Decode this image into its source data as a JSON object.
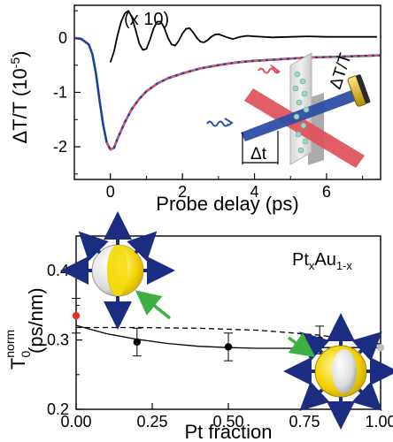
{
  "chart_data": [
    {
      "type": "line",
      "xlabel": "Probe delay (ps)",
      "ylabel": "ΔT/T (10",
      "ylabel_exp": "-5",
      "ylabel_close": ")",
      "xlim": [
        -1,
        7.5
      ],
      "ylim": [
        -2.6,
        0.6
      ],
      "x_ticks": [
        0,
        2,
        4,
        6
      ],
      "y_ticks": [
        0,
        -1,
        -2
      ],
      "x_tick_labels": [
        "0",
        "2",
        "4",
        "6"
      ],
      "y_tick_labels": [
        "0",
        "-1",
        "-2"
      ],
      "annotation": "(x 10)",
      "inset_labels": {
        "dt": "Δt",
        "dtt": "ΔT/T"
      },
      "series": [
        {
          "style": "black-oscillation-x10",
          "color": "#000000",
          "x": [
            0.0,
            0.1,
            0.2,
            0.3,
            0.4,
            0.5,
            0.6,
            0.7,
            0.8,
            0.9,
            1.0,
            1.1,
            1.2,
            1.3,
            1.4,
            1.5,
            1.6,
            1.7,
            1.8,
            1.9,
            2.0,
            2.1,
            2.2,
            2.3,
            2.4,
            2.5,
            2.6,
            2.7,
            2.8,
            2.9,
            3.0,
            3.2,
            3.4,
            3.6,
            3.8,
            4.0,
            4.5,
            5.0,
            5.5,
            6.0,
            6.5,
            7.0,
            7.4
          ],
          "y": [
            -0.45,
            -0.25,
            0.05,
            0.3,
            0.45,
            0.5,
            0.38,
            0.15,
            -0.1,
            -0.22,
            -0.2,
            -0.03,
            0.18,
            0.3,
            0.3,
            0.18,
            0.0,
            -0.12,
            -0.14,
            -0.05,
            0.08,
            0.17,
            0.18,
            0.1,
            0.0,
            -0.07,
            -0.08,
            -0.04,
            0.02,
            0.06,
            0.07,
            0.02,
            -0.02,
            0.02,
            0.04,
            0.03,
            0.01,
            0.02,
            0.03,
            0.02,
            0.02,
            0.02,
            0.02
          ]
        },
        {
          "style": "blue-measured",
          "color": "#1f3f9a",
          "x": [
            -1.0,
            -0.8,
            -0.6,
            -0.5,
            -0.4,
            -0.3,
            -0.2,
            -0.1,
            0.0,
            0.1,
            0.2,
            0.4,
            0.6,
            0.8,
            1.0,
            1.3,
            1.6,
            2.0,
            2.5,
            3.0,
            3.5,
            4.0,
            4.5,
            5.0,
            5.5,
            6.0,
            6.5,
            7.0,
            7.5
          ],
          "y": [
            0.0,
            -0.02,
            -0.12,
            -0.3,
            -0.65,
            -1.15,
            -1.6,
            -1.92,
            -2.05,
            -2.02,
            -1.85,
            -1.55,
            -1.3,
            -1.12,
            -0.98,
            -0.84,
            -0.74,
            -0.65,
            -0.56,
            -0.5,
            -0.45,
            -0.42,
            -0.4,
            -0.38,
            -0.36,
            -0.35,
            -0.34,
            -0.33,
            -0.32
          ]
        },
        {
          "style": "red-dashed-fit",
          "color": "#e0505a",
          "x": [
            -0.1,
            0.0,
            0.1,
            0.2,
            0.4,
            0.6,
            0.8,
            1.0,
            1.3,
            1.6,
            2.0,
            2.5,
            3.0,
            3.5,
            4.0,
            4.5,
            5.0,
            5.5,
            6.0,
            6.5,
            7.0,
            7.5
          ],
          "y": [
            -1.92,
            -2.05,
            -2.02,
            -1.85,
            -1.55,
            -1.3,
            -1.12,
            -0.98,
            -0.84,
            -0.74,
            -0.65,
            -0.56,
            -0.5,
            -0.45,
            -0.42,
            -0.4,
            -0.38,
            -0.36,
            -0.35,
            -0.34,
            -0.33,
            -0.32
          ]
        }
      ]
    },
    {
      "type": "scatter",
      "xlabel": "Pt fraction",
      "ylabel_main": "T",
      "ylabel_sub": "0",
      "ylabel_sup": "norm",
      "ylabel_units": "(ps/nm)",
      "xlim": [
        0.0,
        1.0
      ],
      "ylim": [
        0.2,
        0.45
      ],
      "x_ticks": [
        0.0,
        0.25,
        0.5,
        0.75,
        1.0
      ],
      "y_ticks": [
        0.2,
        0.3,
        0.4
      ],
      "x_tick_labels": [
        "0.00",
        "0.25",
        "0.50",
        "0.75",
        "1.00"
      ],
      "y_tick_labels": [
        "0.2",
        "0.3",
        "0.4"
      ],
      "composition_label": {
        "base": "Pt",
        "sub1": "x",
        "mid": "Au",
        "sub2": "1-x"
      },
      "points": [
        {
          "x": 0.0,
          "y": 0.335,
          "err": 0.025,
          "color": "#e03030"
        },
        {
          "x": 0.2,
          "y": 0.297,
          "err": 0.02,
          "color": "#000000"
        },
        {
          "x": 0.5,
          "y": 0.29,
          "err": 0.02,
          "color": "#000000"
        },
        {
          "x": 0.8,
          "y": 0.3,
          "err": 0.02,
          "color": "#000000"
        },
        {
          "x": 1.0,
          "y": 0.289,
          "err": 0.0,
          "color": "#bbbbbb"
        }
      ],
      "solid_fit": {
        "color": "#000000",
        "x": [
          0.0,
          0.1,
          0.2,
          0.3,
          0.4,
          0.5,
          0.6,
          0.7,
          0.8,
          0.9,
          1.0
        ],
        "y": [
          0.321,
          0.309,
          0.301,
          0.295,
          0.291,
          0.289,
          0.288,
          0.288,
          0.289,
          0.289,
          0.289
        ]
      },
      "dashed_fit": {
        "color": "#000000",
        "x": [
          0.0,
          0.2,
          0.4,
          0.6,
          0.8,
          1.0
        ],
        "y": [
          0.318,
          0.318,
          0.317,
          0.314,
          0.307,
          0.294
        ]
      }
    }
  ]
}
